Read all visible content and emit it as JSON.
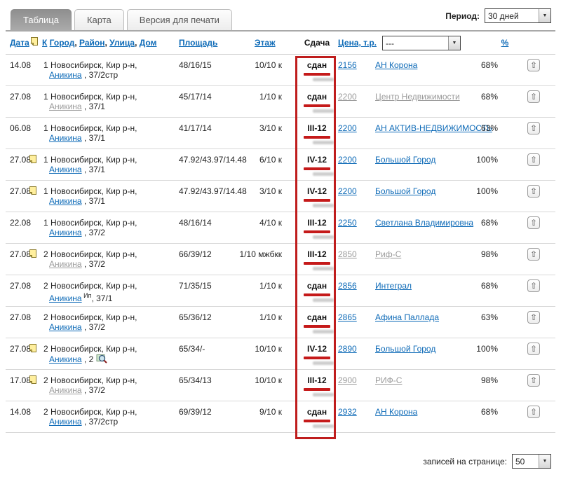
{
  "tabs": [
    {
      "label": "Таблица",
      "active": true
    },
    {
      "label": "Карта",
      "active": false
    },
    {
      "label": "Версия для печати",
      "active": false
    }
  ],
  "period": {
    "label": "Период:",
    "value": "30 дней"
  },
  "table": {
    "headers": {
      "date": "Дата",
      "k": "К",
      "address_links": [
        "Город",
        "Район",
        "Улица",
        "Дом"
      ],
      "area": "Площадь",
      "floor": "Этаж",
      "status": "Сдача",
      "price": "Цена, т.р.",
      "filter_value": "---",
      "percent": "%"
    },
    "rows": [
      {
        "date": "14.08",
        "has_doc": false,
        "k": "1",
        "city": "Новосибирск, Кир р-н,",
        "street": "Аникина",
        "street_visited": false,
        "street_sup": "",
        "rest": " , 37/2стр",
        "has_zoom": false,
        "area": "48/16/15",
        "floor": "10/10 к",
        "status": "сдан",
        "price": "2156",
        "price_visited": false,
        "agency": "АН Корона",
        "agency_visited": false,
        "percent": "68%"
      },
      {
        "date": "27.08",
        "has_doc": false,
        "k": "1",
        "city": "Новосибирск, Кир р-н,",
        "street": "Аникина",
        "street_visited": true,
        "street_sup": "",
        "rest": " , 37/1",
        "has_zoom": false,
        "area": "45/17/14",
        "floor": "1/10 к",
        "status": "сдан",
        "price": "2200",
        "price_visited": true,
        "agency": "Центр Недвижимости",
        "agency_visited": true,
        "percent": "68%"
      },
      {
        "date": "06.08",
        "has_doc": false,
        "k": "1",
        "city": "Новосибирск, Кир р-н,",
        "street": "Аникина",
        "street_visited": false,
        "street_sup": "",
        "rest": " , 37/1",
        "has_zoom": false,
        "area": "41/17/14",
        "floor": "3/10 к",
        "status": "III-12",
        "price": "2200",
        "price_visited": false,
        "agency": "АН АКТИВ-НЕДВИЖИМОСТЬ",
        "agency_visited": false,
        "percent": "63%"
      },
      {
        "date": "27.08",
        "has_doc": true,
        "k": "1",
        "city": "Новосибирск, Кир р-н,",
        "street": "Аникина",
        "street_visited": false,
        "street_sup": "",
        "rest": " , 37/1",
        "has_zoom": false,
        "area": "47.92/43.97/14.48",
        "floor": "6/10 к",
        "status": "IV-12",
        "price": "2200",
        "price_visited": false,
        "agency": "Большой Город",
        "agency_visited": false,
        "percent": "100%"
      },
      {
        "date": "27.08",
        "has_doc": true,
        "k": "1",
        "city": "Новосибирск, Кир р-н,",
        "street": "Аникина",
        "street_visited": false,
        "street_sup": "",
        "rest": " , 37/1",
        "has_zoom": false,
        "area": "47.92/43.97/14.48",
        "floor": "3/10 к",
        "status": "IV-12",
        "price": "2200",
        "price_visited": false,
        "agency": "Большой Город",
        "agency_visited": false,
        "percent": "100%"
      },
      {
        "date": "22.08",
        "has_doc": false,
        "k": "1",
        "city": "Новосибирск, Кир р-н,",
        "street": "Аникина",
        "street_visited": false,
        "street_sup": "",
        "rest": " , 37/2",
        "has_zoom": false,
        "area": "48/16/14",
        "floor": "4/10 к",
        "status": "III-12",
        "price": "2250",
        "price_visited": false,
        "agency": "Светлана Владимировна",
        "agency_visited": false,
        "percent": "68%"
      },
      {
        "date": "27.08",
        "has_doc": true,
        "k": "2",
        "city": "Новосибирск, Кир р-н,",
        "street": "Аникина",
        "street_visited": true,
        "street_sup": "",
        "rest": " , 37/2",
        "has_zoom": false,
        "area": "66/39/12",
        "floor": "1/10 мжбкк",
        "status": "III-12",
        "price": "2850",
        "price_visited": true,
        "agency": "Риф-С",
        "agency_visited": true,
        "percent": "98%"
      },
      {
        "date": "27.08",
        "has_doc": false,
        "k": "2",
        "city": "Новосибирск, Кир р-н,",
        "street": "Аникина",
        "street_visited": false,
        "street_sup": "Ип",
        "rest": ", 37/1",
        "has_zoom": false,
        "area": "71/35/15",
        "floor": "1/10 к",
        "status": "сдан",
        "price": "2856",
        "price_visited": false,
        "agency": "Интеграл",
        "agency_visited": false,
        "percent": "68%"
      },
      {
        "date": "27.08",
        "has_doc": false,
        "k": "2",
        "city": "Новосибирск, Кир р-н,",
        "street": "Аникина",
        "street_visited": false,
        "street_sup": "",
        "rest": " , 37/2",
        "has_zoom": false,
        "area": "65/36/12",
        "floor": "1/10 к",
        "status": "сдан",
        "price": "2865",
        "price_visited": false,
        "agency": "Афина Паллада",
        "agency_visited": false,
        "percent": "63%"
      },
      {
        "date": "27.08",
        "has_doc": true,
        "k": "2",
        "city": "Новосибирск, Кир р-н,",
        "street": "Аникина",
        "street_visited": false,
        "street_sup": "",
        "rest": " , 2 ",
        "has_zoom": true,
        "area": "65/34/-",
        "floor": "10/10 к",
        "status": "IV-12",
        "price": "2890",
        "price_visited": false,
        "agency": "Большой Город",
        "agency_visited": false,
        "percent": "100%"
      },
      {
        "date": "17.08",
        "has_doc": true,
        "k": "2",
        "city": "Новосибирск, Кир р-н,",
        "street": "Аникина",
        "street_visited": true,
        "street_sup": "",
        "rest": " , 37/2",
        "has_zoom": false,
        "area": "65/34/13",
        "floor": "10/10 к",
        "status": "III-12",
        "price": "2900",
        "price_visited": true,
        "agency": "РИФ-С",
        "agency_visited": true,
        "percent": "98%"
      },
      {
        "date": "14.08",
        "has_doc": false,
        "k": "2",
        "city": "Новосибирск, Кир р-н,",
        "street": "Аникина",
        "street_visited": false,
        "street_sup": "",
        "rest": " , 37/2стр",
        "has_zoom": false,
        "area": "69/39/12",
        "floor": "9/10 к",
        "status": "сдан",
        "price": "2932",
        "price_visited": false,
        "agency": "АН Корона",
        "agency_visited": false,
        "percent": "68%"
      }
    ]
  },
  "footer": {
    "label": "записей на странице:",
    "value": "50"
  },
  "colors": {
    "link": "#0d6ab7",
    "visited_link": "#9b9b9b",
    "annotation_red": "#bf1d1d"
  }
}
